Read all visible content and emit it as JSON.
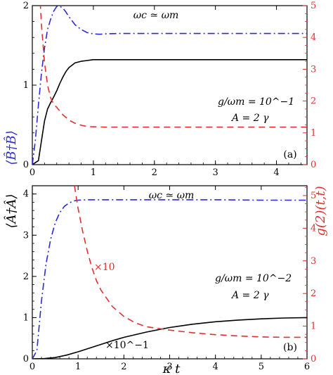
{
  "chart_data": [
    {
      "type": "line",
      "panel_label": "(a)",
      "annotation_top": "ωc ≃ ωm",
      "annotation_g": "g/ωm = 10^−1",
      "annotation_A": "A = 2 γ",
      "xlim": [
        0,
        4.5
      ],
      "ylim_left": [
        0,
        2
      ],
      "ylim_right": [
        0,
        5
      ],
      "x_ticks": [
        0,
        1,
        2,
        3,
        4
      ],
      "y_ticks_left": [
        0,
        1,
        2
      ],
      "y_ticks_right": [
        0,
        1,
        2,
        3,
        4,
        5
      ],
      "series": [
        {
          "axis": "left",
          "color": "#000000",
          "style": "solid",
          "x": [
            0,
            0.1,
            0.15,
            0.2,
            0.25,
            0.3,
            0.35,
            0.4,
            0.45,
            0.5,
            0.55,
            0.6,
            0.7,
            0.8,
            0.9,
            1.0,
            1.2,
            1.5,
            2,
            3,
            4,
            4.5
          ],
          "y": [
            0,
            0.05,
            0.3,
            0.55,
            0.7,
            0.78,
            0.85,
            0.93,
            1.02,
            1.1,
            1.17,
            1.22,
            1.28,
            1.3,
            1.31,
            1.32,
            1.32,
            1.32,
            1.32,
            1.32,
            1.32,
            1.32
          ]
        },
        {
          "axis": "left",
          "color": "#2b2bd6",
          "style": "dashdot",
          "x": [
            0,
            0.05,
            0.1,
            0.15,
            0.2,
            0.25,
            0.3,
            0.35,
            0.4,
            0.45,
            0.5,
            0.55,
            0.6,
            0.7,
            0.8,
            0.9,
            1.0,
            1.1,
            1.2,
            1.4,
            1.6,
            2,
            3,
            4,
            4.5
          ],
          "y": [
            0,
            0.3,
            0.75,
            1.15,
            1.47,
            1.7,
            1.83,
            1.93,
            1.99,
            1.99,
            1.97,
            1.92,
            1.86,
            1.76,
            1.7,
            1.66,
            1.645,
            1.64,
            1.645,
            1.65,
            1.65,
            1.65,
            1.65,
            1.65,
            1.65
          ]
        },
        {
          "axis": "right",
          "color": "#e03030",
          "style": "dashed",
          "x": [
            0.13,
            0.15,
            0.2,
            0.25,
            0.3,
            0.35,
            0.4,
            0.5,
            0.6,
            0.7,
            0.8,
            0.9,
            1.0,
            1.2,
            1.5,
            2,
            3,
            4,
            4.5
          ],
          "y": [
            5.1,
            4.4,
            3.2,
            2.5,
            2.1,
            1.9,
            1.8,
            1.57,
            1.4,
            1.3,
            1.24,
            1.2,
            1.19,
            1.18,
            1.18,
            1.18,
            1.18,
            1.18,
            1.18
          ]
        }
      ]
    },
    {
      "type": "line",
      "panel_label": "(b)",
      "annotation_top": "ωc ≃ ωm",
      "annotation_g": "g/ωm = 10^−2",
      "annotation_A": "A = 2 γ",
      "annotation_x10": "×10",
      "annotation_x01": "×10^−1",
      "xlabel": "κ t",
      "xlim": [
        0,
        6
      ],
      "ylim_left": [
        0,
        4.2
      ],
      "ylim_right": [
        0,
        5.3
      ],
      "x_ticks": [
        0,
        1,
        2,
        3,
        4,
        5,
        6
      ],
      "y_ticks_left": [
        0,
        1,
        2,
        3,
        4
      ],
      "y_ticks_right": [
        0,
        1,
        2,
        3,
        4,
        5
      ],
      "series": [
        {
          "axis": "left",
          "color": "#000000",
          "style": "solid",
          "x": [
            0,
            0.25,
            0.5,
            0.75,
            1.0,
            1.25,
            1.5,
            1.75,
            2.0,
            2.5,
            3.0,
            3.5,
            4.0,
            4.5,
            5.0,
            5.5,
            6.0
          ],
          "y": [
            0,
            0.005,
            0.03,
            0.09,
            0.17,
            0.26,
            0.35,
            0.44,
            0.52,
            0.65,
            0.76,
            0.84,
            0.9,
            0.94,
            0.97,
            0.99,
            1.0
          ]
        },
        {
          "axis": "left",
          "color": "#2b2bd6",
          "style": "dashdot",
          "x": [
            0,
            0.1,
            0.2,
            0.3,
            0.4,
            0.5,
            0.6,
            0.7,
            0.8,
            0.9,
            1.0,
            1.2,
            1.5,
            2,
            3,
            4,
            5,
            6
          ],
          "y": [
            0,
            0.2,
            1.4,
            2.3,
            2.9,
            3.3,
            3.55,
            3.7,
            3.78,
            3.83,
            3.85,
            3.86,
            3.86,
            3.86,
            3.86,
            3.86,
            3.85,
            3.85
          ]
        },
        {
          "axis": "right",
          "color": "#e03030",
          "style": "dashed",
          "x": [
            0.92,
            1.0,
            1.1,
            1.2,
            1.3,
            1.4,
            1.5,
            1.75,
            2.0,
            2.25,
            2.5,
            3.0,
            3.5,
            4.0,
            4.5,
            5.0,
            5.5,
            6.0
          ],
          "y": [
            5.3,
            4.6,
            3.9,
            3.3,
            2.8,
            2.4,
            2.1,
            1.6,
            1.3,
            1.1,
            0.98,
            0.88,
            0.8,
            0.74,
            0.7,
            0.67,
            0.66,
            0.66
          ]
        }
      ]
    }
  ],
  "shared": {
    "ylabel_left_a": "⟨B̂†B̂⟩",
    "ylabel_left_b": "⟨Â†Â⟩",
    "ylabel_right": "g(2)(t,t)",
    "colors": {
      "black": "#000000",
      "blue": "#2b2bd6",
      "red": "#e03030"
    }
  }
}
